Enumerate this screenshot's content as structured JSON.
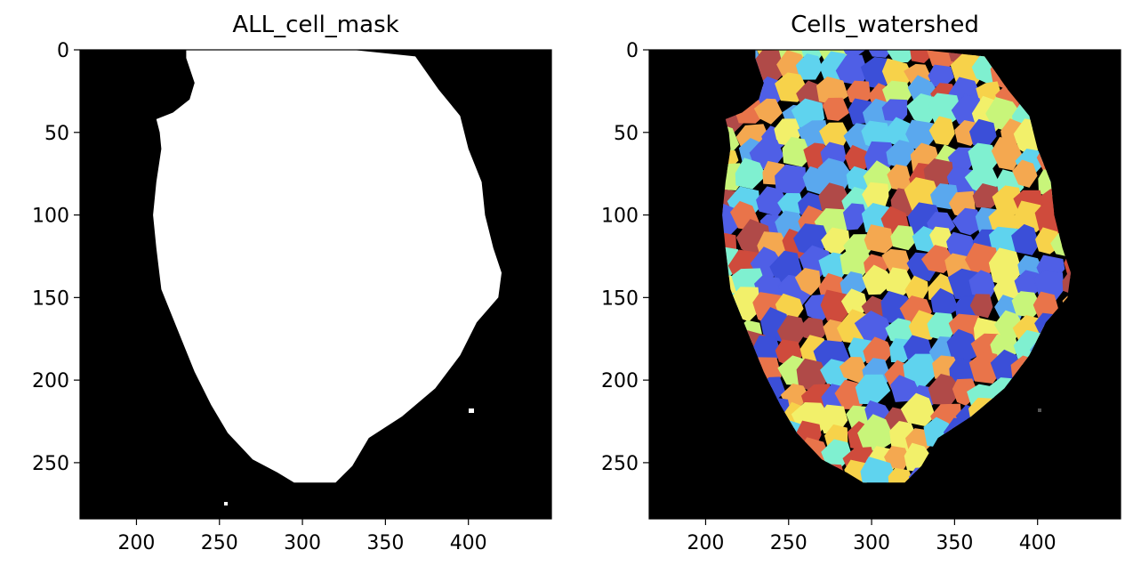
{
  "chart_data": [
    {
      "type": "image",
      "title": "ALL_cell_mask",
      "colormap": "binary (black background, white mask)",
      "background": "#000000",
      "foreground": "#ffffff",
      "x_ticks": [
        200,
        250,
        300,
        350,
        400
      ],
      "y_ticks": [
        0,
        50,
        100,
        150,
        200,
        250
      ],
      "xlim": [
        166,
        450
      ],
      "ylim": [
        284,
        0
      ],
      "mask_outline": [
        [
          230,
          0
        ],
        [
          330,
          0
        ],
        [
          368,
          4
        ],
        [
          382,
          24
        ],
        [
          395,
          40
        ],
        [
          400,
          60
        ],
        [
          408,
          80
        ],
        [
          410,
          100
        ],
        [
          415,
          120
        ],
        [
          420,
          135
        ],
        [
          418,
          150
        ],
        [
          405,
          165
        ],
        [
          395,
          185
        ],
        [
          380,
          205
        ],
        [
          360,
          222
        ],
        [
          340,
          235
        ],
        [
          330,
          252
        ],
        [
          320,
          262
        ],
        [
          295,
          262
        ],
        [
          285,
          256
        ],
        [
          270,
          248
        ],
        [
          255,
          232
        ],
        [
          245,
          215
        ],
        [
          235,
          195
        ],
        [
          225,
          170
        ],
        [
          215,
          145
        ],
        [
          212,
          120
        ],
        [
          210,
          100
        ],
        [
          212,
          80
        ],
        [
          215,
          60
        ],
        [
          214,
          50
        ],
        [
          212,
          42
        ],
        [
          222,
          38
        ],
        [
          232,
          30
        ],
        [
          235,
          20
        ],
        [
          230,
          5
        ]
      ]
    },
    {
      "type": "image",
      "title": "Cells_watershed",
      "colormap": "jet-like label colors",
      "background": "#000000",
      "palette": [
        "#4f5fe6",
        "#3b4fd8",
        "#5aa8ee",
        "#5fd3ee",
        "#7ff0d0",
        "#c8f57a",
        "#f2f06a",
        "#f7d24a",
        "#f4a850",
        "#e9744a",
        "#cf4b3c",
        "#b04a48"
      ],
      "x_ticks": [
        200,
        250,
        300,
        350,
        400
      ],
      "y_ticks": [
        0,
        50,
        100,
        150,
        200,
        250
      ],
      "xlim": [
        166,
        450
      ],
      "ylim": [
        284,
        0
      ]
    }
  ]
}
